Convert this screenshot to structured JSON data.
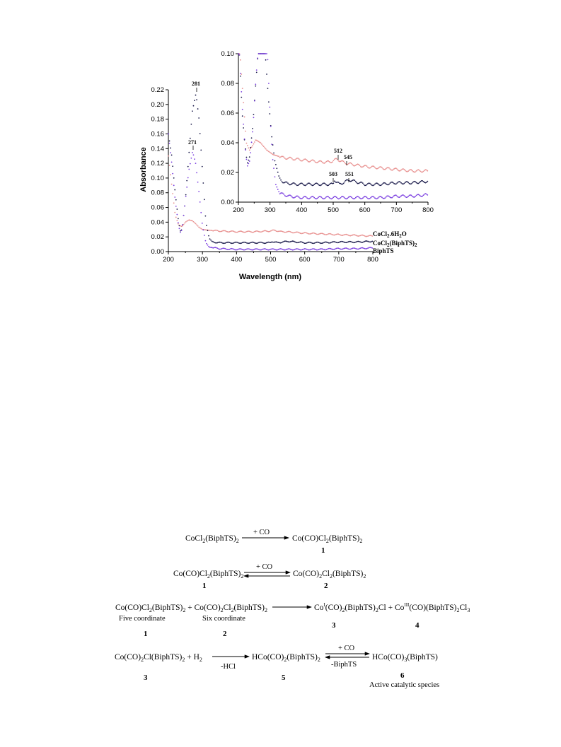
{
  "chart_data": [
    {
      "type": "scatter",
      "xlabel": "Wavelength (nm)",
      "ylabel": "Absorbance",
      "xlim": [
        200,
        800
      ],
      "ylim": [
        0,
        0.22
      ],
      "x_ticks": [
        "200",
        "300",
        "400",
        "500",
        "600",
        "700",
        "800"
      ],
      "y_ticks": [
        "0.00",
        "0.02",
        "0.04",
        "0.06",
        "0.08",
        "0.10",
        "0.12",
        "0.14",
        "0.16",
        "0.18",
        "0.20",
        "0.22"
      ],
      "series": [
        {
          "name": "CoCl2.6H2O",
          "color": "#e8908f",
          "points": [
            [
              200,
              0.13
            ],
            [
              210,
              0.09
            ],
            [
              220,
              0.05
            ],
            [
              230,
              0.036
            ],
            [
              240,
              0.034
            ],
            [
              250,
              0.04
            ],
            [
              260,
              0.043
            ],
            [
              270,
              0.042
            ],
            [
              280,
              0.038
            ],
            [
              290,
              0.033
            ],
            [
              300,
              0.03
            ],
            [
              320,
              0.029
            ],
            [
              350,
              0.028
            ],
            [
              400,
              0.027
            ],
            [
              450,
              0.027
            ],
            [
              500,
              0.028
            ],
            [
              512,
              0.029
            ],
            [
              530,
              0.027
            ],
            [
              545,
              0.027
            ],
            [
              600,
              0.025
            ],
            [
              650,
              0.024
            ],
            [
              700,
              0.023
            ],
            [
              750,
              0.022
            ],
            [
              800,
              0.021
            ]
          ]
        },
        {
          "name": "CoCl2(BiphTS)2",
          "color": "#1a1a4a",
          "points": [
            [
              200,
              0.16
            ],
            [
              210,
              0.13
            ],
            [
              220,
              0.08
            ],
            [
              230,
              0.04
            ],
            [
              235,
              0.028
            ],
            [
              240,
              0.03
            ],
            [
              250,
              0.07
            ],
            [
              260,
              0.13
            ],
            [
              270,
              0.19
            ],
            [
              281,
              0.215
            ],
            [
              290,
              0.18
            ],
            [
              300,
              0.11
            ],
            [
              310,
              0.04
            ],
            [
              320,
              0.018
            ],
            [
              330,
              0.013
            ],
            [
              350,
              0.012
            ],
            [
              400,
              0.012
            ],
            [
              450,
              0.012
            ],
            [
              500,
              0.012
            ],
            [
              503,
              0.014
            ],
            [
              520,
              0.012
            ],
            [
              551,
              0.014
            ],
            [
              600,
              0.012
            ],
            [
              650,
              0.012
            ],
            [
              700,
              0.013
            ],
            [
              750,
              0.013
            ],
            [
              800,
              0.014
            ]
          ]
        },
        {
          "name": "BiphTS",
          "color": "#7b3fe0",
          "points": [
            [
              200,
              0.16
            ],
            [
              210,
              0.12
            ],
            [
              220,
              0.07
            ],
            [
              230,
              0.035
            ],
            [
              235,
              0.026
            ],
            [
              240,
              0.03
            ],
            [
              250,
              0.07
            ],
            [
              260,
              0.11
            ],
            [
              271,
              0.136
            ],
            [
              280,
              0.12
            ],
            [
              290,
              0.08
            ],
            [
              300,
              0.035
            ],
            [
              310,
              0.012
            ],
            [
              320,
              0.006
            ],
            [
              350,
              0.004
            ],
            [
              400,
              0.003
            ],
            [
              450,
              0.003
            ],
            [
              500,
              0.003
            ],
            [
              550,
              0.003
            ],
            [
              600,
              0.003
            ],
            [
              650,
              0.003
            ],
            [
              700,
              0.004
            ],
            [
              750,
              0.004
            ],
            [
              800,
              0.005
            ]
          ]
        }
      ],
      "annotations": [
        "281",
        "271"
      ]
    },
    {
      "type": "scatter",
      "xlim": [
        200,
        800
      ],
      "ylim": [
        0,
        0.1
      ],
      "x_ticks": [
        "200",
        "300",
        "400",
        "500",
        "600",
        "700",
        "800"
      ],
      "y_ticks": [
        "0.00",
        "0.02",
        "0.04",
        "0.06",
        "0.08",
        "0.10"
      ],
      "series": [
        {
          "name": "CoCl2.6H2O",
          "color": "#e8908f",
          "points": [
            [
              205,
              0.1
            ],
            [
              215,
              0.07
            ],
            [
              225,
              0.04
            ],
            [
              235,
              0.035
            ],
            [
              245,
              0.038
            ],
            [
              255,
              0.042
            ],
            [
              270,
              0.04
            ],
            [
              290,
              0.035
            ],
            [
              310,
              0.032
            ],
            [
              340,
              0.03
            ],
            [
              380,
              0.029
            ],
            [
              420,
              0.028
            ],
            [
              460,
              0.027
            ],
            [
              490,
              0.027
            ],
            [
              512,
              0.029
            ],
            [
              530,
              0.027
            ],
            [
              545,
              0.026
            ],
            [
              600,
              0.024
            ],
            [
              650,
              0.023
            ],
            [
              700,
              0.022
            ],
            [
              750,
              0.021
            ],
            [
              800,
              0.021
            ]
          ]
        },
        {
          "name": "CoCl2(BiphTS)2",
          "color": "#1a1a4a",
          "points": [
            [
              203,
              0.1
            ],
            [
              212,
              0.06
            ],
            [
              220,
              0.04
            ],
            [
              228,
              0.026
            ],
            [
              235,
              0.03
            ],
            [
              245,
              0.05
            ],
            [
              255,
              0.08
            ],
            [
              262,
              0.1
            ],
            [
              285,
              0.1
            ],
            [
              295,
              0.07
            ],
            [
              305,
              0.045
            ],
            [
              315,
              0.028
            ],
            [
              330,
              0.016
            ],
            [
              345,
              0.013
            ],
            [
              380,
              0.012
            ],
            [
              420,
              0.012
            ],
            [
              460,
              0.012
            ],
            [
              500,
              0.012
            ],
            [
              503,
              0.015
            ],
            [
              520,
              0.012
            ],
            [
              551,
              0.015
            ],
            [
              600,
              0.012
            ],
            [
              650,
              0.012
            ],
            [
              700,
              0.013
            ],
            [
              750,
              0.013
            ],
            [
              800,
              0.014
            ]
          ]
        },
        {
          "name": "BiphTS",
          "color": "#7b3fe0",
          "points": [
            [
              203,
              0.1
            ],
            [
              212,
              0.065
            ],
            [
              220,
              0.04
            ],
            [
              228,
              0.024
            ],
            [
              236,
              0.028
            ],
            [
              246,
              0.05
            ],
            [
              256,
              0.085
            ],
            [
              262,
              0.1
            ],
            [
              292,
              0.1
            ],
            [
              300,
              0.06
            ],
            [
              308,
              0.03
            ],
            [
              318,
              0.012
            ],
            [
              330,
              0.006
            ],
            [
              360,
              0.004
            ],
            [
              400,
              0.003
            ],
            [
              450,
              0.003
            ],
            [
              500,
              0.003
            ],
            [
              550,
              0.003
            ],
            [
              600,
              0.003
            ],
            [
              650,
              0.003
            ],
            [
              700,
              0.004
            ],
            [
              750,
              0.004
            ],
            [
              800,
              0.005
            ]
          ]
        }
      ],
      "annotations": [
        "512",
        "545",
        "503",
        "551"
      ]
    }
  ],
  "scheme": {
    "r1_left": "CoCl2(BiphTS)2",
    "r1_arrow": "+ CO",
    "r1_right": "Co(CO)Cl2(BiphTS)2",
    "r1_num": "1",
    "r2_left": "Co(CO)Cl2(BiphTS)2",
    "r2_arrow": "+ CO",
    "r2_right": "Co(CO)2Cl2(BiphTS)2",
    "r2_num_left": "1",
    "r2_num_right": "2",
    "r3_a": "Co(CO)Cl2(BiphTS)2 + Co(CO)2Cl2(BiphTS)2",
    "r3_b": "CoI(CO)2(BiphTS)2Cl + CoIII(CO)(BiphTS)2Cl3",
    "r3_five": "Five coordinate",
    "r3_six": "Six coordinate",
    "r3_n1": "1",
    "r3_n2": "2",
    "r3_n3": "3",
    "r3_n4": "4",
    "r4_left": "Co(CO)2Cl(BiphTS)2 + H2",
    "r4_arrow1": "-HCl",
    "r4_mid": "HCo(CO)2(BiphTS)2",
    "r4_arrow2_top": "+ CO",
    "r4_arrow2_bot": "-BiphTS",
    "r4_right": "HCo(CO)3(BiphTS)",
    "r4_n3": "3",
    "r4_n5": "5",
    "r4_n6": "6",
    "r4_active": "Active catalytic species"
  }
}
